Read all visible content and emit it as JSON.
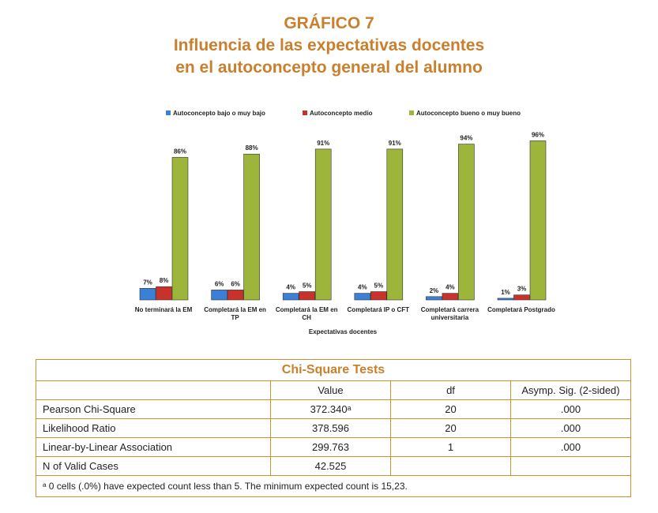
{
  "chart_data": {
    "type": "bar",
    "label": "GRÁFICO 7",
    "title": [
      "Influencia de las expectativas docentes",
      "en el autoconcepto general del alumno"
    ],
    "x_label": "Expectativas docentes",
    "categories": [
      "No terminará la EM",
      "Completará la EM en TP",
      "Completará la EM en CH",
      "Completará IP o CFT",
      "Completará carrera universitaria",
      "Completará Postgrado"
    ],
    "series": [
      {
        "name": "Autoconcepto bajo o muy bajo",
        "color": "#3b7fd6",
        "values": [
          7,
          6,
          4,
          4,
          2,
          1
        ],
        "value_labels": [
          "7%",
          "6%",
          "4%",
          "4%",
          "2%",
          "1%"
        ]
      },
      {
        "name": "Autoconcepto medio",
        "color": "#c8322b",
        "values": [
          8,
          6,
          5,
          5,
          4,
          3
        ],
        "value_labels": [
          "8%",
          "6%",
          "5%",
          "5%",
          "4%",
          "3%"
        ]
      },
      {
        "name": "Autoconcepto bueno o muy bueno",
        "color": "#9db53a",
        "values": [
          86,
          88,
          91,
          91,
          94,
          96
        ],
        "value_labels": [
          "86%",
          "88%",
          "91%",
          "91%",
          "94%",
          "96%"
        ]
      }
    ]
  },
  "table": {
    "title": "Chi-Square Tests",
    "header": [
      "Value",
      "df",
      "Asymp. Sig. (2-sided)"
    ],
    "rows": [
      [
        "Pearson Chi-Square",
        "372.340ᵃ",
        "20",
        ".000"
      ],
      [
        "Likelihood Ratio",
        "378.596",
        "20",
        ".000"
      ],
      [
        "Linear-by-Linear Association",
        "299.763",
        "1",
        ".000"
      ],
      [
        "N of Valid Cases",
        "42.525"
      ]
    ],
    "footnote": "ᵃ 0 cells (.0%) have expected count less than 5. The minimum expected count is 15,23."
  }
}
